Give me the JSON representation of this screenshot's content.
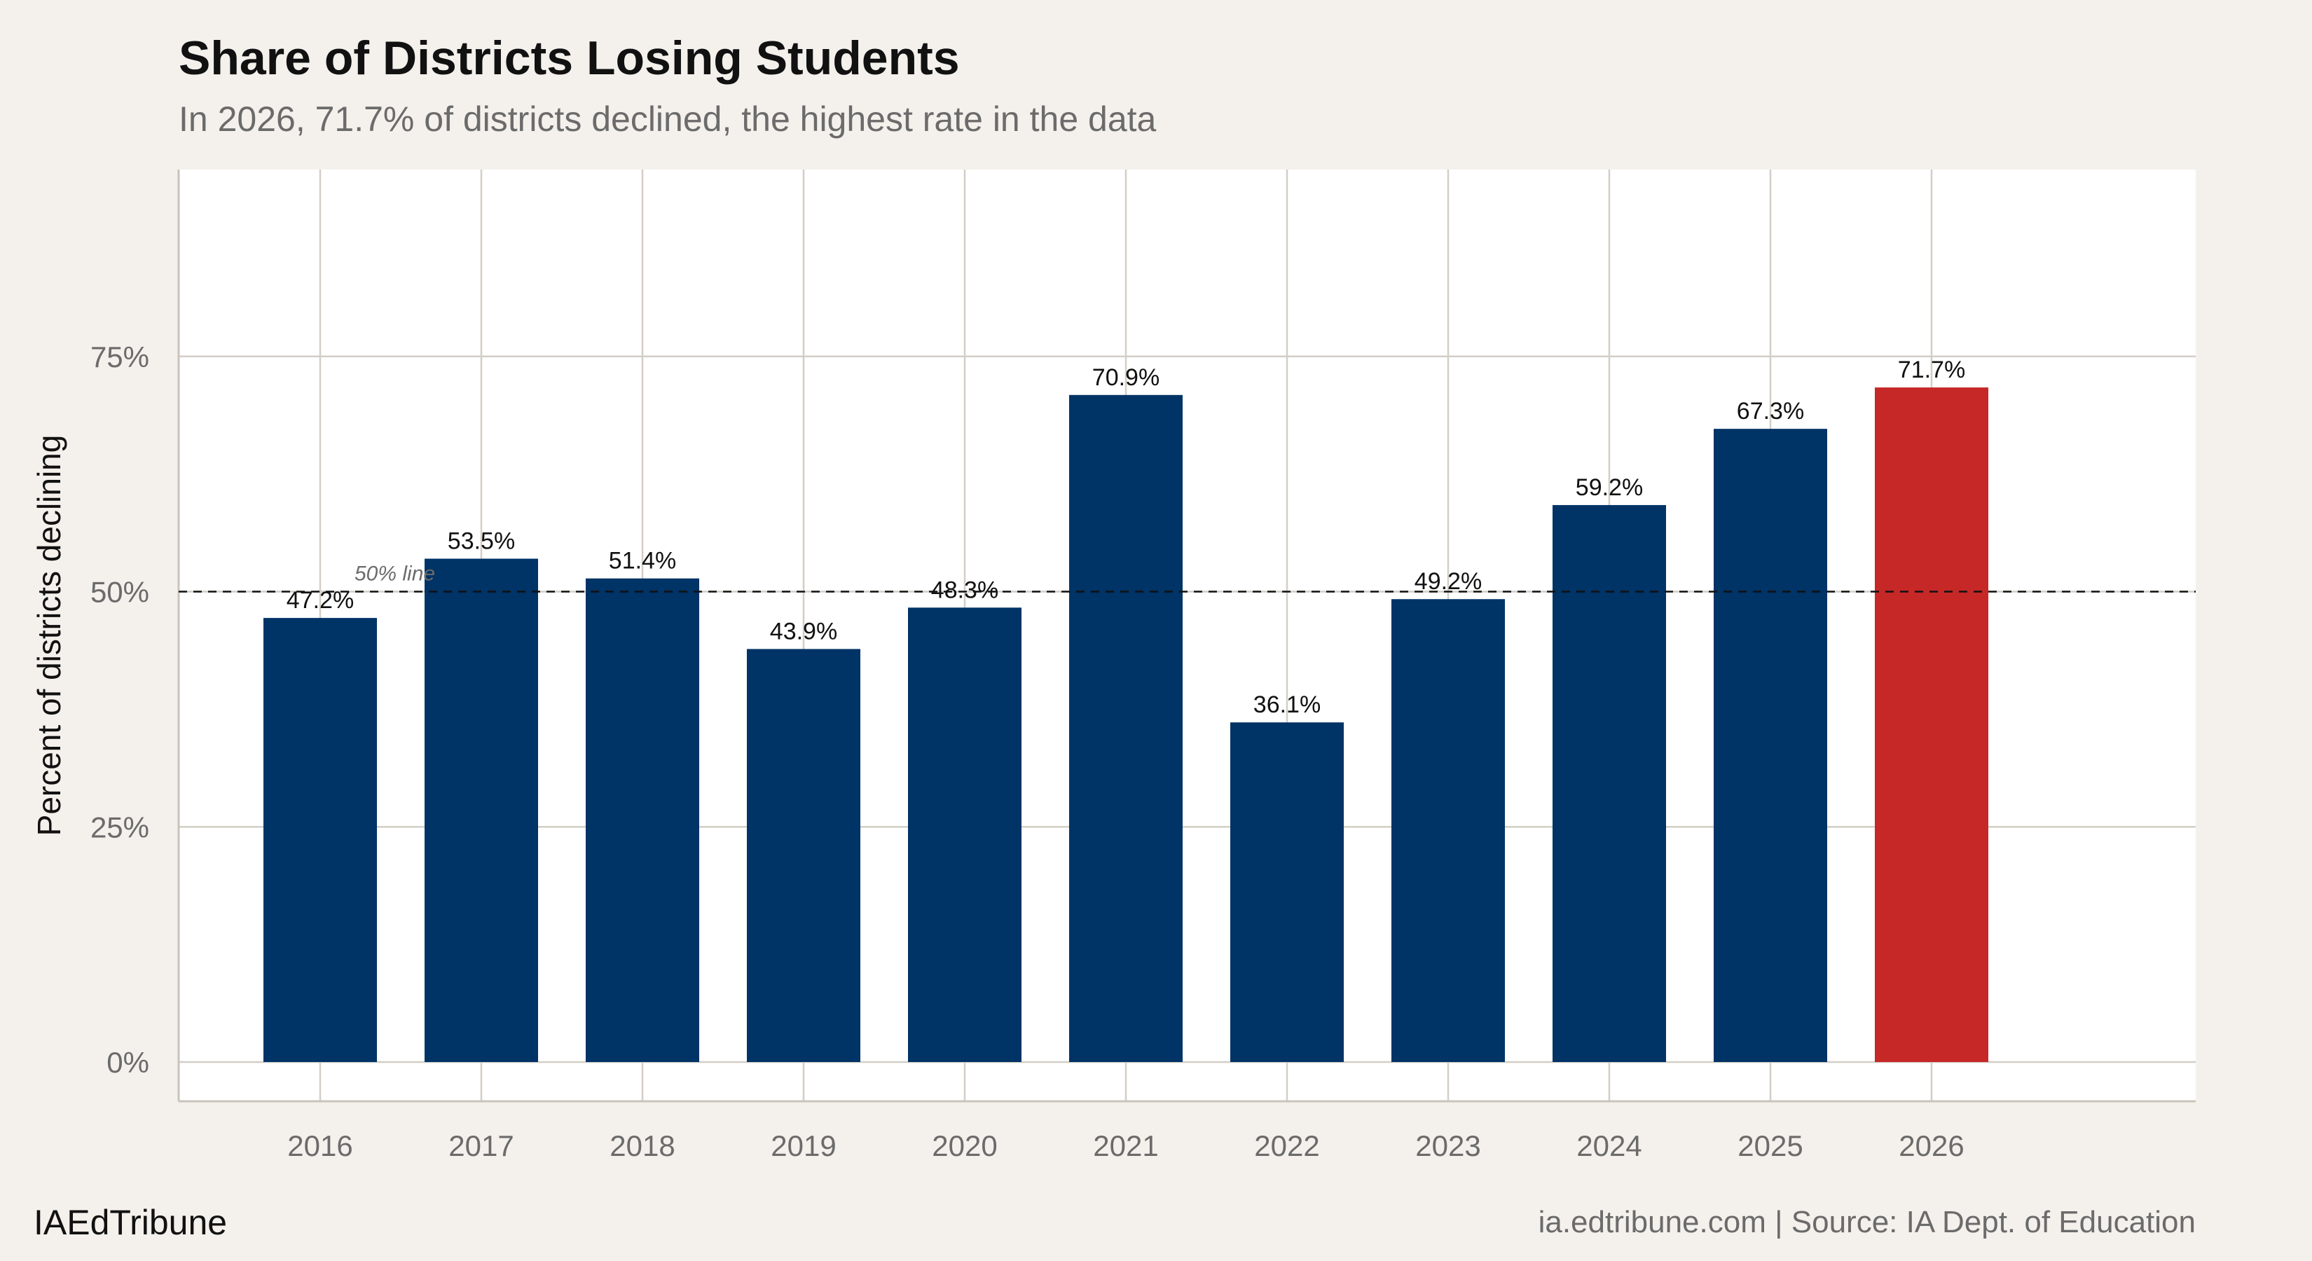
{
  "chart_data": {
    "type": "bar",
    "title": "Share of Districts Losing Students",
    "subtitle": "In 2026, 71.7% of districts declined, the highest rate in the data",
    "xlabel": "",
    "ylabel": "Percent of districts declining",
    "categories": [
      "2016",
      "2017",
      "2018",
      "2019",
      "2020",
      "2021",
      "2022",
      "2023",
      "2024",
      "2025",
      "2026"
    ],
    "values": [
      47.2,
      53.5,
      51.4,
      43.9,
      48.3,
      70.9,
      36.1,
      49.2,
      59.2,
      67.3,
      71.7
    ],
    "data_labels": [
      "47.2%",
      "53.5%",
      "51.4%",
      "43.9%",
      "48.3%",
      "70.9%",
      "36.1%",
      "49.2%",
      "59.2%",
      "67.3%",
      "71.7%"
    ],
    "highlight": "2026",
    "ylim": [
      -4.2,
      95
    ],
    "yticks": [
      0,
      25,
      50,
      75
    ],
    "ytick_labels": [
      "0%",
      "25%",
      "50%",
      "75%"
    ],
    "grid": true,
    "reference_line": {
      "value": 50,
      "label": "50% line",
      "style": "dashed"
    },
    "colors": {
      "bar": "#003366",
      "highlight": "#c62828",
      "background": "#f4f1ec",
      "panel": "#ffffff",
      "grid": "#d3cec6"
    }
  },
  "footer": {
    "brand": "IAEdTribune",
    "source": "ia.edtribune.com | Source: IA Dept. of Education"
  }
}
